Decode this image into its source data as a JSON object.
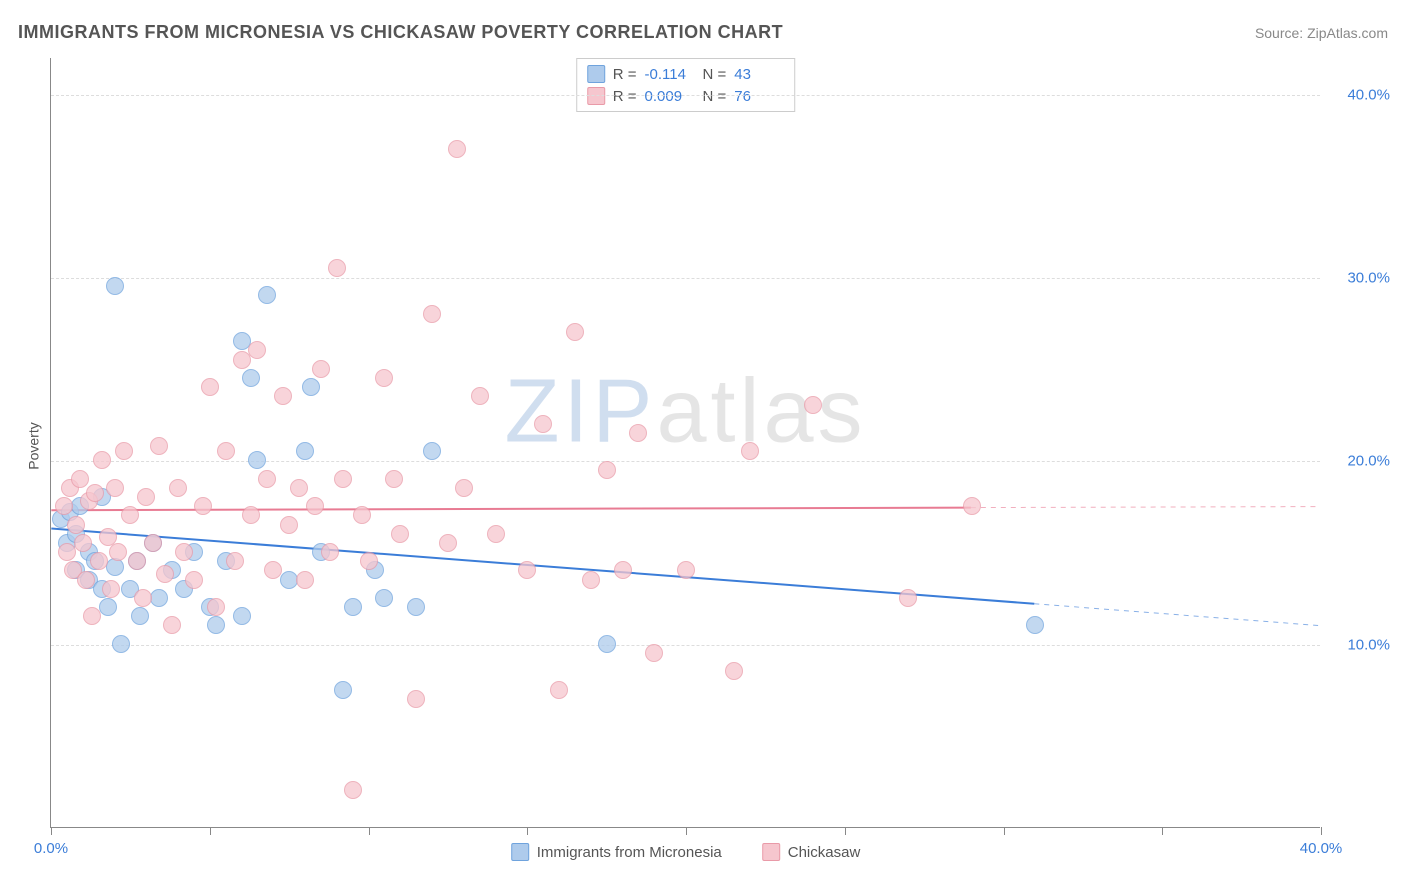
{
  "header": {
    "title": "IMMIGRANTS FROM MICRONESIA VS CHICKASAW POVERTY CORRELATION CHART",
    "source": "Source: ZipAtlas.com"
  },
  "watermark": {
    "part1": "ZIP",
    "part2": "atlas"
  },
  "axes": {
    "ylabel": "Poverty",
    "xlim": [
      0,
      40
    ],
    "ylim": [
      0,
      42
    ],
    "yticks": [
      {
        "v": 10,
        "label": "10.0%"
      },
      {
        "v": 20,
        "label": "20.0%"
      },
      {
        "v": 30,
        "label": "30.0%"
      },
      {
        "v": 40,
        "label": "40.0%"
      }
    ],
    "xticks": [
      {
        "v": 0,
        "label": "0.0%"
      },
      {
        "v": 5,
        "label": ""
      },
      {
        "v": 10,
        "label": ""
      },
      {
        "v": 15,
        "label": ""
      },
      {
        "v": 20,
        "label": ""
      },
      {
        "v": 25,
        "label": ""
      },
      {
        "v": 30,
        "label": ""
      },
      {
        "v": 35,
        "label": ""
      },
      {
        "v": 40,
        "label": "40.0%"
      }
    ],
    "tick_label_color": "#3b7dd8",
    "grid_color": "#dddddd",
    "axis_color": "#888888"
  },
  "series": [
    {
      "id": "micronesia",
      "label": "Immigrants from Micronesia",
      "fill": "#aecbec",
      "stroke": "#6fa3dd",
      "line_color": "#3b7dd8",
      "line_width": 2,
      "stats": {
        "R": "-0.114",
        "N": "43"
      },
      "trend": {
        "x1": 0,
        "y1": 16.3,
        "x2": 40,
        "y2": 11.0,
        "dash_from_x": 31
      },
      "points": [
        [
          0.3,
          16.8
        ],
        [
          0.5,
          15.5
        ],
        [
          0.6,
          17.2
        ],
        [
          0.8,
          14.0
        ],
        [
          0.8,
          16.0
        ],
        [
          0.9,
          17.5
        ],
        [
          1.2,
          15.0
        ],
        [
          1.2,
          13.5
        ],
        [
          1.4,
          14.5
        ],
        [
          1.6,
          18.0
        ],
        [
          1.6,
          13.0
        ],
        [
          1.8,
          12.0
        ],
        [
          2.0,
          29.5
        ],
        [
          2.0,
          14.2
        ],
        [
          2.2,
          10.0
        ],
        [
          2.5,
          13.0
        ],
        [
          2.7,
          14.5
        ],
        [
          2.8,
          11.5
        ],
        [
          3.2,
          15.5
        ],
        [
          3.4,
          12.5
        ],
        [
          3.8,
          14.0
        ],
        [
          4.2,
          13.0
        ],
        [
          4.5,
          15.0
        ],
        [
          5.0,
          12.0
        ],
        [
          5.2,
          11.0
        ],
        [
          5.5,
          14.5
        ],
        [
          6.0,
          26.5
        ],
        [
          6.3,
          24.5
        ],
        [
          6.5,
          20.0
        ],
        [
          6.8,
          29.0
        ],
        [
          7.5,
          13.5
        ],
        [
          8.0,
          20.5
        ],
        [
          8.2,
          24.0
        ],
        [
          8.5,
          15.0
        ],
        [
          9.2,
          7.5
        ],
        [
          9.5,
          12.0
        ],
        [
          10.2,
          14.0
        ],
        [
          10.5,
          12.5
        ],
        [
          11.5,
          12.0
        ],
        [
          12.0,
          20.5
        ],
        [
          17.5,
          10.0
        ],
        [
          31.0,
          11.0
        ],
        [
          6.0,
          11.5
        ]
      ]
    },
    {
      "id": "chickasaw",
      "label": "Chickasaw",
      "fill": "#f6c6ce",
      "stroke": "#e99aa8",
      "line_color": "#e87b93",
      "line_width": 2,
      "stats": {
        "R": "0.009",
        "N": "76"
      },
      "trend": {
        "x1": 0,
        "y1": 17.3,
        "x2": 40,
        "y2": 17.5,
        "dash_from_x": 29
      },
      "points": [
        [
          0.4,
          17.5
        ],
        [
          0.5,
          15.0
        ],
        [
          0.6,
          18.5
        ],
        [
          0.7,
          14.0
        ],
        [
          0.8,
          16.5
        ],
        [
          0.9,
          19.0
        ],
        [
          1.0,
          15.5
        ],
        [
          1.1,
          13.5
        ],
        [
          1.2,
          17.8
        ],
        [
          1.3,
          11.5
        ],
        [
          1.4,
          18.2
        ],
        [
          1.5,
          14.5
        ],
        [
          1.6,
          20.0
        ],
        [
          1.8,
          15.8
        ],
        [
          1.9,
          13.0
        ],
        [
          2.0,
          18.5
        ],
        [
          2.1,
          15.0
        ],
        [
          2.3,
          20.5
        ],
        [
          2.5,
          17.0
        ],
        [
          2.7,
          14.5
        ],
        [
          2.9,
          12.5
        ],
        [
          3.0,
          18.0
        ],
        [
          3.2,
          15.5
        ],
        [
          3.4,
          20.8
        ],
        [
          3.6,
          13.8
        ],
        [
          3.8,
          11.0
        ],
        [
          4.0,
          18.5
        ],
        [
          4.2,
          15.0
        ],
        [
          4.5,
          13.5
        ],
        [
          4.8,
          17.5
        ],
        [
          5.0,
          24.0
        ],
        [
          5.2,
          12.0
        ],
        [
          5.5,
          20.5
        ],
        [
          5.8,
          14.5
        ],
        [
          6.0,
          25.5
        ],
        [
          6.3,
          17.0
        ],
        [
          6.5,
          26.0
        ],
        [
          6.8,
          19.0
        ],
        [
          7.0,
          14.0
        ],
        [
          7.3,
          23.5
        ],
        [
          7.5,
          16.5
        ],
        [
          7.8,
          18.5
        ],
        [
          8.0,
          13.5
        ],
        [
          8.3,
          17.5
        ],
        [
          8.5,
          25.0
        ],
        [
          8.8,
          15.0
        ],
        [
          9.0,
          30.5
        ],
        [
          9.2,
          19.0
        ],
        [
          9.5,
          2.0
        ],
        [
          9.8,
          17.0
        ],
        [
          10.0,
          14.5
        ],
        [
          10.5,
          24.5
        ],
        [
          10.8,
          19.0
        ],
        [
          11.0,
          16.0
        ],
        [
          11.5,
          7.0
        ],
        [
          12.0,
          28.0
        ],
        [
          12.5,
          15.5
        ],
        [
          12.8,
          37.0
        ],
        [
          13.0,
          18.5
        ],
        [
          13.5,
          23.5
        ],
        [
          14.0,
          16.0
        ],
        [
          15.0,
          14.0
        ],
        [
          15.5,
          22.0
        ],
        [
          16.0,
          7.5
        ],
        [
          16.5,
          27.0
        ],
        [
          17.0,
          13.5
        ],
        [
          17.5,
          19.5
        ],
        [
          18.0,
          14.0
        ],
        [
          18.5,
          21.5
        ],
        [
          19.0,
          9.5
        ],
        [
          20.0,
          14.0
        ],
        [
          21.5,
          8.5
        ],
        [
          22.0,
          20.5
        ],
        [
          24.0,
          23.0
        ],
        [
          27.0,
          12.5
        ],
        [
          29.0,
          17.5
        ]
      ]
    }
  ],
  "legend_bottom": [
    {
      "series": 0
    },
    {
      "series": 1
    }
  ]
}
